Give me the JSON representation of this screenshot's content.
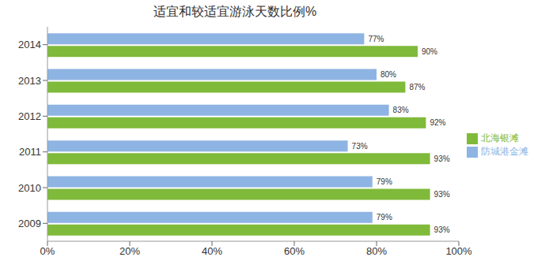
{
  "chart_data": {
    "type": "bar",
    "orientation": "horizontal",
    "title": "适宜和较适宜游泳天数比例%",
    "categories": [
      "2014",
      "2013",
      "2012",
      "2011",
      "2010",
      "2009"
    ],
    "series": [
      {
        "name": "防城港金滩",
        "color": "#8eb4e3",
        "values": [
          77,
          80,
          83,
          73,
          79,
          79
        ],
        "value_labels": [
          "77%",
          "80%",
          "83%",
          "73%",
          "79%",
          "79%"
        ]
      },
      {
        "name": "北海银滩",
        "color": "#7fba3a",
        "values": [
          90,
          87,
          92,
          93,
          93,
          93
        ],
        "value_labels": [
          "90%",
          "87%",
          "92%",
          "93%",
          "93%",
          "93%"
        ]
      }
    ],
    "xlim": [
      0,
      100
    ],
    "xticks": [
      {
        "value": 0,
        "label": "0%"
      },
      {
        "value": 20,
        "label": "20%"
      },
      {
        "value": 40,
        "label": "40%"
      },
      {
        "value": 60,
        "label": "60%"
      },
      {
        "value": 80,
        "label": "80%"
      },
      {
        "value": 100,
        "label": "100%"
      }
    ],
    "data_labels": true,
    "legend": "right",
    "grid": false
  }
}
